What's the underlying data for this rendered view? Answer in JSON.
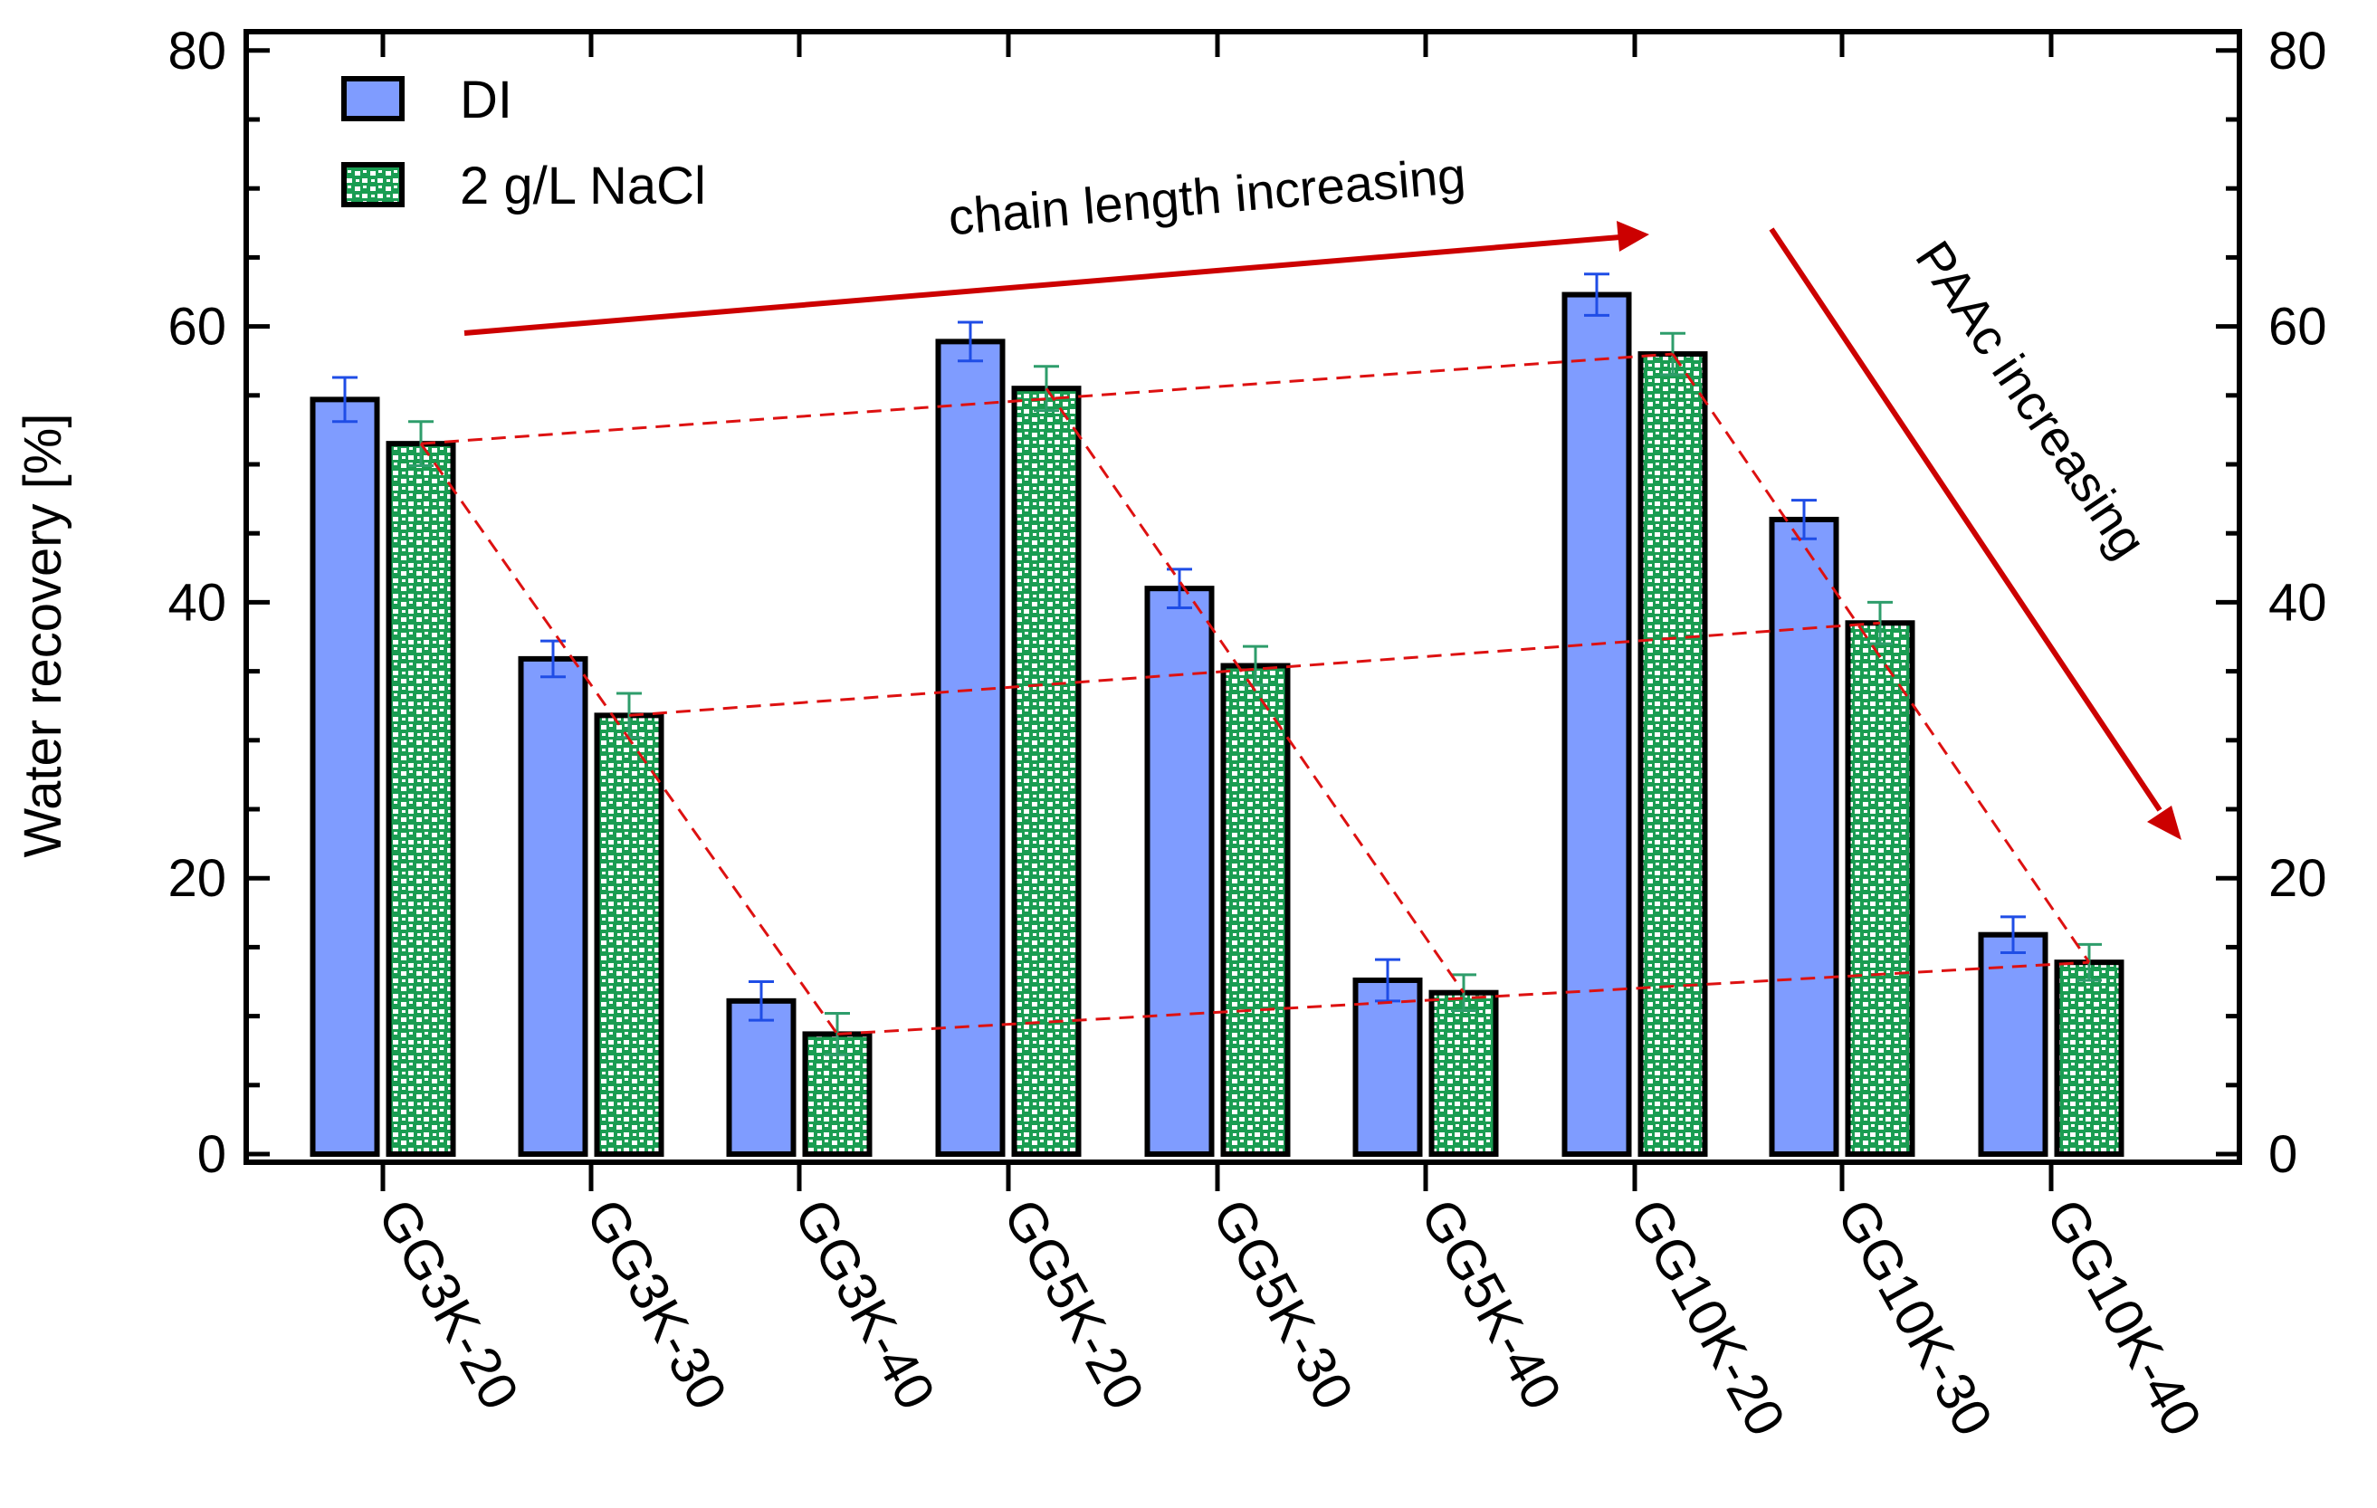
{
  "chart_data": {
    "type": "bar",
    "ylabel": "Water recovery [%]",
    "xlabel": "",
    "ylim": [
      0,
      80
    ],
    "y_ticks": [
      "0",
      "20",
      "40",
      "60",
      "80"
    ],
    "right_axis_ticks": [
      "0",
      "20",
      "40",
      "60",
      "80"
    ],
    "categories": [
      "GG3K-20",
      "GG3K-30",
      "GG3K-40",
      "GG5K-20",
      "GG5K-30",
      "GG5K-40",
      "GG10K-20",
      "GG10K-30",
      "GG10K-40"
    ],
    "series": [
      {
        "name": "DI",
        "color": "#7f9cff",
        "errbar_color": "#1f4de6",
        "values": [
          54.7,
          35.9,
          11.1,
          58.9,
          41.0,
          12.6,
          62.3,
          46.0,
          15.9
        ],
        "errors": [
          1.6,
          1.3,
          1.4,
          1.4,
          1.4,
          1.5,
          1.5,
          1.4,
          1.3
        ]
      },
      {
        "name": "2 g/L NaCl",
        "color": "#1a9d52",
        "errbar_color": "#2e9d6b",
        "values": [
          51.5,
          31.8,
          8.7,
          55.5,
          35.4,
          11.7,
          58.0,
          38.5,
          13.9
        ],
        "errors": [
          1.6,
          1.6,
          1.5,
          1.6,
          1.4,
          1.3,
          1.5,
          1.5,
          1.3
        ]
      }
    ],
    "legend_position": "top-left",
    "annotations": {
      "chain_length": "chain length increasing",
      "paac": "PAAc increasing",
      "arrow_color": "#cc0000",
      "trend_line_color": "#dd1111"
    },
    "trend_lines": [
      {
        "from": [
          "GG3K-20",
          51.5
        ],
        "to": [
          "GG10K-20",
          58.0
        ]
      },
      {
        "from": [
          "GG3K-30",
          31.8
        ],
        "to": [
          "GG10K-30",
          38.5
        ]
      },
      {
        "from": [
          "GG3K-40",
          8.7
        ],
        "to": [
          "GG10K-40",
          13.9
        ]
      },
      {
        "from": [
          "GG3K-20",
          51.5
        ],
        "to": [
          "GG3K-40",
          8.7
        ]
      },
      {
        "from": [
          "GG5K-20",
          55.5
        ],
        "to": [
          "GG5K-40",
          11.7
        ]
      },
      {
        "from": [
          "GG10K-20",
          58.0
        ],
        "to": [
          "GG10K-40",
          13.9
        ]
      }
    ]
  }
}
